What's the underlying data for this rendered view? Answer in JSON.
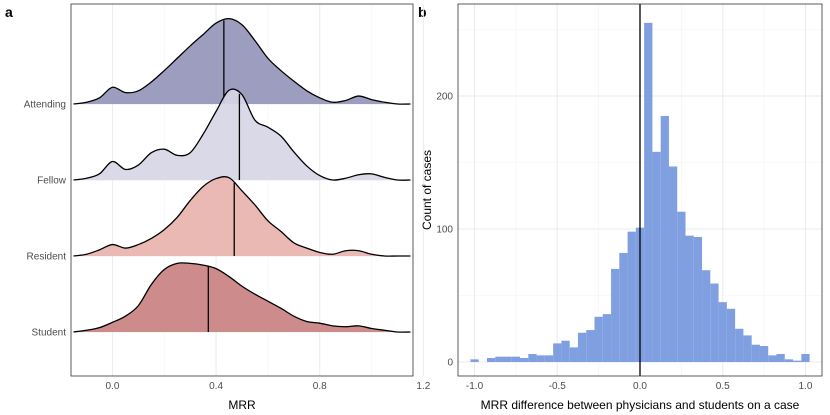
{
  "chart_data": [
    {
      "panel": "a",
      "type": "area",
      "subtype": "ridgeline",
      "xlabel": "MRR",
      "ylabel": "",
      "xlim": [
        -0.16,
        1.16
      ],
      "xticks": [
        "0.0",
        "0.4",
        "0.8",
        "1.2"
      ],
      "x_tick_values": [
        0,
        0.4,
        0.8,
        1.2
      ],
      "density_x": [
        -0.15,
        -0.1,
        -0.05,
        0,
        0.05,
        0.1,
        0.15,
        0.2,
        0.25,
        0.3,
        0.35,
        0.4,
        0.45,
        0.5,
        0.55,
        0.6,
        0.65,
        0.7,
        0.75,
        0.8,
        0.85,
        0.9,
        0.95,
        1.0,
        1.05,
        1.1,
        1.15
      ],
      "series": [
        {
          "name": "Attending",
          "color": "#9595ba",
          "median": 0.43,
          "density": [
            0.0,
            0.02,
            0.07,
            0.19,
            0.13,
            0.15,
            0.25,
            0.38,
            0.52,
            0.66,
            0.79,
            0.92,
            0.97,
            0.9,
            0.72,
            0.52,
            0.38,
            0.26,
            0.15,
            0.07,
            0.02,
            0.04,
            0.09,
            0.05,
            0.02,
            0.0,
            0.0
          ]
        },
        {
          "name": "Fellow",
          "color": "#d6d6e6",
          "median": 0.49,
          "density": [
            0.0,
            0.02,
            0.07,
            0.21,
            0.12,
            0.17,
            0.31,
            0.35,
            0.28,
            0.31,
            0.52,
            0.78,
            1.02,
            0.97,
            0.68,
            0.6,
            0.5,
            0.32,
            0.16,
            0.05,
            0.0,
            0.02,
            0.06,
            0.07,
            0.03,
            0.0,
            0.0
          ]
        },
        {
          "name": "Resident",
          "color": "#e9b3ae",
          "median": 0.47,
          "density": [
            0.0,
            0.02,
            0.07,
            0.13,
            0.09,
            0.13,
            0.2,
            0.3,
            0.44,
            0.63,
            0.79,
            0.88,
            0.89,
            0.74,
            0.58,
            0.4,
            0.28,
            0.15,
            0.09,
            0.04,
            0.02,
            0.06,
            0.06,
            0.02,
            0.0,
            0.0,
            0.0
          ]
        },
        {
          "name": "Student",
          "color": "#c98281",
          "median": 0.37,
          "density": [
            0.0,
            0.02,
            0.05,
            0.11,
            0.18,
            0.3,
            0.54,
            0.71,
            0.78,
            0.78,
            0.76,
            0.72,
            0.63,
            0.52,
            0.43,
            0.35,
            0.27,
            0.18,
            0.12,
            0.1,
            0.07,
            0.06,
            0.07,
            0.04,
            0.02,
            0.0,
            0.0
          ]
        }
      ]
    },
    {
      "panel": "b",
      "type": "bar",
      "subtype": "histogram",
      "xlabel": "MRR difference between physicians and students on a case",
      "ylabel": "Count of cases",
      "xlim": [
        -1.1,
        1.1
      ],
      "ylim": [
        0,
        255
      ],
      "xticks": [
        "-1.0",
        "-0.5",
        "0.0",
        "0.5",
        "1.0"
      ],
      "x_tick_values": [
        -1,
        -0.5,
        0,
        0.5,
        1
      ],
      "yticks": [
        "0",
        "100",
        "200"
      ],
      "y_tick_values": [
        0,
        100,
        200
      ],
      "bar_color": "#7f9fe0",
      "vline_at": 0,
      "bin_edges": [
        -1.025,
        -0.975,
        -0.925,
        -0.875,
        -0.825,
        -0.775,
        -0.725,
        -0.675,
        -0.625,
        -0.575,
        -0.525,
        -0.475,
        -0.425,
        -0.375,
        -0.325,
        -0.275,
        -0.225,
        -0.175,
        -0.125,
        -0.075,
        -0.025,
        0.025,
        0.075,
        0.125,
        0.175,
        0.225,
        0.275,
        0.325,
        0.375,
        0.425,
        0.475,
        0.525,
        0.575,
        0.625,
        0.675,
        0.725,
        0.775,
        0.825,
        0.875,
        0.925,
        0.975,
        1.025
      ],
      "values": [
        2,
        0,
        3,
        4,
        4,
        4,
        3,
        6,
        5,
        5,
        14,
        16,
        11,
        22,
        24,
        34,
        36,
        70,
        82,
        98,
        101,
        255,
        158,
        185,
        147,
        113,
        95,
        94,
        69,
        59,
        45,
        40,
        25,
        20,
        13,
        12,
        5,
        6,
        2,
        1,
        6
      ]
    }
  ],
  "panel_labels": [
    "a",
    "b"
  ]
}
